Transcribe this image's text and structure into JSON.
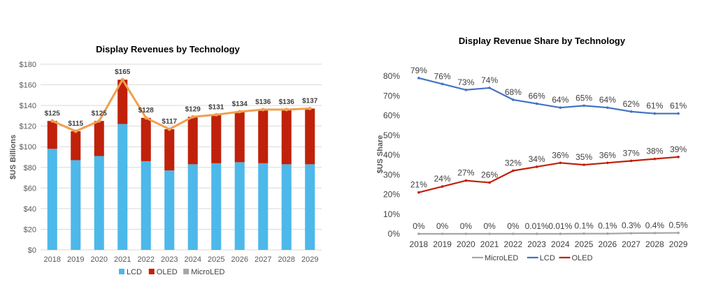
{
  "chart_data": [
    {
      "type": "bar",
      "stacked": true,
      "title": "Display Revenues by Technology",
      "ylabel": "$US Billions",
      "xlabel": "",
      "ylim": [
        0,
        180
      ],
      "ytick_step": 20,
      "ytick_labels": [
        "$0",
        "$20",
        "$40",
        "$60",
        "$80",
        "$100",
        "$120",
        "$140",
        "$160",
        "$180"
      ],
      "categories": [
        "2018",
        "2019",
        "2020",
        "2021",
        "2022",
        "2023",
        "2024",
        "2025",
        "2026",
        "2027",
        "2028",
        "2029"
      ],
      "series": [
        {
          "name": "LCD",
          "color": "#4db8ea",
          "values": [
            98,
            87,
            91,
            122,
            86,
            77,
            83,
            84,
            85,
            84,
            83,
            83
          ]
        },
        {
          "name": "OLED",
          "color": "#c0210a",
          "values": [
            27,
            28,
            34,
            43,
            42,
            40,
            46,
            47,
            49,
            52,
            53,
            54
          ]
        },
        {
          "name": "MicroLED",
          "color": "#a6a6a6",
          "values": [
            0,
            0,
            0,
            0,
            0,
            0,
            0,
            0,
            0,
            0,
            0,
            0
          ]
        }
      ],
      "total_line": {
        "color": "#f0a050",
        "values": [
          125,
          115,
          125,
          165,
          128,
          117,
          129,
          131,
          134,
          136,
          136,
          137
        ]
      },
      "total_labels": [
        "$125",
        "$115",
        "$125",
        "$165",
        "$128",
        "$117",
        "$129",
        "$131",
        "$134",
        "$136",
        "$136",
        "$137"
      ],
      "legend": {
        "position": "bottom",
        "entries": [
          "LCD",
          "OLED",
          "MicroLED"
        ]
      },
      "grid": true
    },
    {
      "type": "line",
      "title": "Display Revenue Share by Technology",
      "ylabel": "$US Share",
      "xlabel": "",
      "ylim": [
        0,
        80
      ],
      "ytick_step": 10,
      "ytick_labels": [
        "0%",
        "10%",
        "20%",
        "30%",
        "40%",
        "50%",
        "60%",
        "70%",
        "80%"
      ],
      "categories": [
        "2018",
        "2019",
        "2020",
        "2021",
        "2022",
        "2023",
        "2024",
        "2025",
        "2026",
        "2027",
        "2028",
        "2029"
      ],
      "series": [
        {
          "name": "MicroLED",
          "color": "#a6a6a6",
          "values": [
            0,
            0,
            0,
            0,
            0,
            0.01,
            0.01,
            0.1,
            0.1,
            0.3,
            0.4,
            0.5
          ],
          "labels": [
            "0%",
            "0%",
            "0%",
            "0%",
            "0%",
            "0.01%",
            "0.01%",
            "0.1%",
            "0.1%",
            "0.3%",
            "0.4%",
            "0.5%"
          ]
        },
        {
          "name": "LCD",
          "color": "#4472c4",
          "values": [
            79,
            76,
            73,
            74,
            68,
            66,
            64,
            65,
            64,
            62,
            61,
            61
          ],
          "labels": [
            "79%",
            "76%",
            "73%",
            "74%",
            "68%",
            "66%",
            "64%",
            "65%",
            "64%",
            "62%",
            "61%",
            "61%"
          ]
        },
        {
          "name": "OLED",
          "color": "#c0210a",
          "values": [
            21,
            24,
            27,
            26,
            32,
            34,
            36,
            35,
            36,
            37,
            38,
            39
          ],
          "labels": [
            "21%",
            "24%",
            "27%",
            "26%",
            "32%",
            "34%",
            "36%",
            "35%",
            "36%",
            "37%",
            "38%",
            "39%"
          ]
        }
      ],
      "legend": {
        "position": "bottom",
        "entries": [
          "MicroLED",
          "LCD",
          "OLED"
        ]
      },
      "grid": false
    }
  ]
}
